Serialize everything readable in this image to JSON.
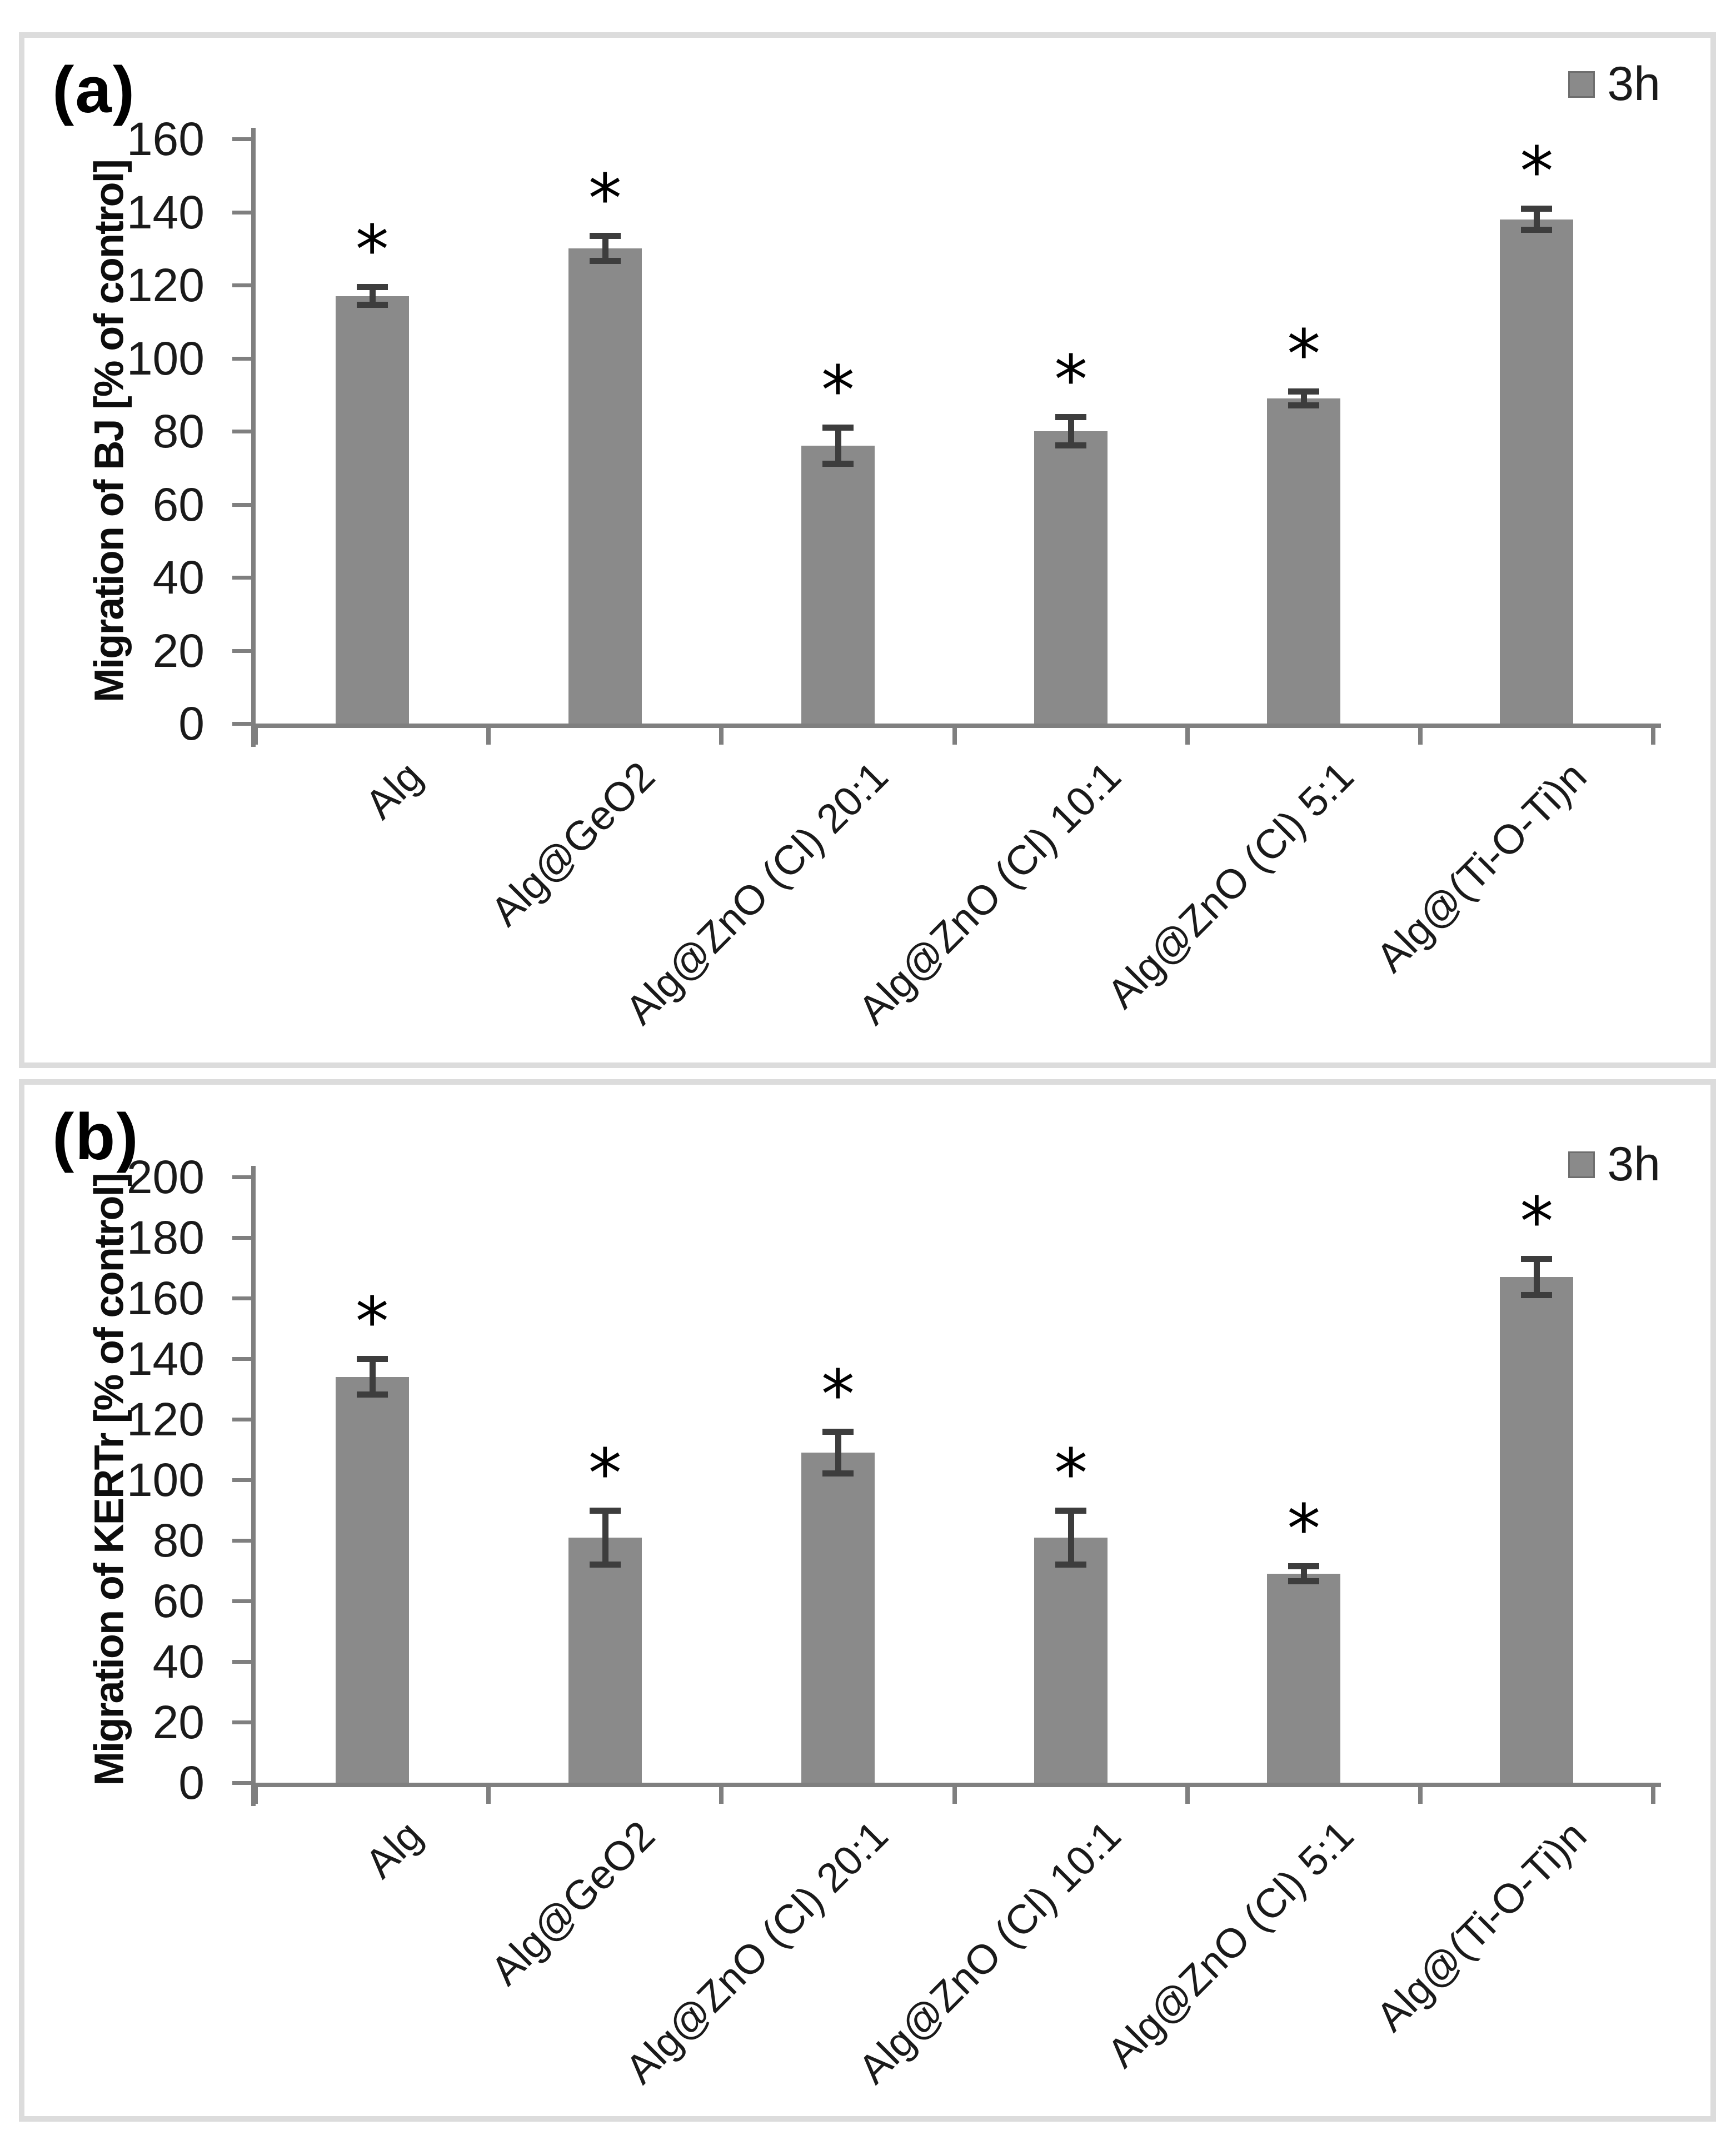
{
  "chart_data": [
    {
      "type": "bar",
      "panel_label": "(a)",
      "title": "",
      "ylabel": "Migration of BJ [% of control]",
      "xlabel": "",
      "ylim": [
        0,
        160
      ],
      "ytick_step": 20,
      "yticks": [
        0,
        20,
        40,
        60,
        80,
        100,
        120,
        140,
        160
      ],
      "grid": false,
      "legend": {
        "label": "3h",
        "position": "top-right",
        "swatch_color": "#8a8a8a"
      },
      "categories": [
        "Alg",
        "Alg@GeO2",
        "Alg@ZnO (Cl) 20:1",
        "Alg@ZnO (Cl) 10:1",
        "Alg@ZnO (Cl) 5:1",
        "Alg@(Ti-O-Ti)n"
      ],
      "series": [
        {
          "name": "3h",
          "values": [
            117,
            130,
            76,
            80,
            89,
            138
          ],
          "errors": [
            2.5,
            3.5,
            5,
            4,
            2,
            3
          ],
          "significance": [
            "*",
            "*",
            "*",
            "*",
            "*",
            "*"
          ]
        }
      ],
      "bar_color": "#8a8a8a",
      "error_bar_color": "#3d3d3d",
      "axis_color": "#7f7f7f",
      "text_color": "#1a1a1a"
    },
    {
      "type": "bar",
      "panel_label": "(b)",
      "title": "",
      "ylabel": "Migration of KERTr [% of control]",
      "xlabel": "",
      "ylim": [
        0,
        200
      ],
      "ytick_step": 20,
      "yticks": [
        0,
        20,
        40,
        60,
        80,
        100,
        120,
        140,
        160,
        180,
        200
      ],
      "grid": false,
      "legend": {
        "label": "3h",
        "position": "top-right",
        "swatch_color": "#8a8a8a"
      },
      "categories": [
        "Alg",
        "Alg@GeO2",
        "Alg@ZnO (Cl) 20:1",
        "Alg@ZnO (Cl) 10:1",
        "Alg@ZnO (Cl) 5:1",
        "Alg@(Ti-O-Ti)n"
      ],
      "series": [
        {
          "name": "3h",
          "values": [
            134,
            81,
            109,
            81,
            69,
            167
          ],
          "errors": [
            6,
            9,
            7,
            9,
            2.5,
            6
          ],
          "significance": [
            "*",
            "*",
            "*",
            "*",
            "*",
            "*"
          ]
        }
      ],
      "bar_color": "#8a8a8a",
      "error_bar_color": "#3d3d3d",
      "axis_color": "#7f7f7f",
      "text_color": "#1a1a1a"
    }
  ]
}
